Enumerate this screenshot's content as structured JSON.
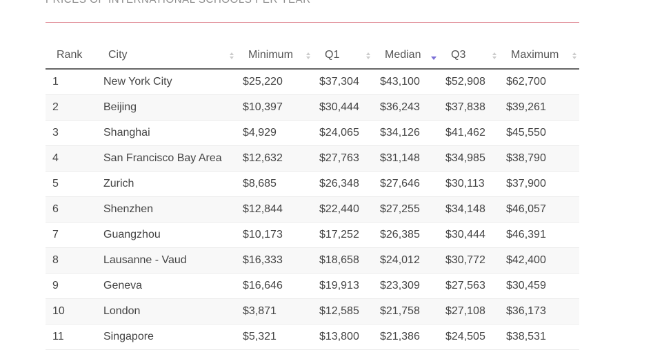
{
  "header": {
    "title": "PRICES OF INTERNATIONAL SCHOOLS PER YEAR"
  },
  "table": {
    "columns": [
      "Rank",
      "City",
      "Minimum",
      "Q1",
      "Median",
      "Q3",
      "Maximum"
    ],
    "sort": {
      "column": "Median",
      "direction": "descending"
    },
    "rows": [
      [
        "1",
        "New York City",
        "$25,220",
        "$37,304",
        "$43,100",
        "$52,908",
        "$62,700"
      ],
      [
        "2",
        "Beijing",
        "$10,397",
        "$30,444",
        "$36,243",
        "$37,838",
        "$39,261"
      ],
      [
        "3",
        "Shanghai",
        "$4,929",
        "$24,065",
        "$34,126",
        "$41,462",
        "$45,550"
      ],
      [
        "4",
        "San Francisco Bay Area",
        "$12,632",
        "$27,763",
        "$31,148",
        "$34,985",
        "$38,790"
      ],
      [
        "5",
        "Zurich",
        "$8,685",
        "$26,348",
        "$27,646",
        "$30,113",
        "$37,900"
      ],
      [
        "6",
        "Shenzhen",
        "$12,844",
        "$22,440",
        "$27,255",
        "$34,148",
        "$46,057"
      ],
      [
        "7",
        "Guangzhou",
        "$10,173",
        "$17,252",
        "$26,385",
        "$30,444",
        "$46,391"
      ],
      [
        "8",
        "Lausanne - Vaud",
        "$16,333",
        "$18,658",
        "$24,012",
        "$30,772",
        "$42,400"
      ],
      [
        "9",
        "Geneva",
        "$16,646",
        "$19,913",
        "$23,309",
        "$27,563",
        "$30,459"
      ],
      [
        "10",
        "London",
        "$3,871",
        "$12,585",
        "$21,758",
        "$27,108",
        "$36,173"
      ],
      [
        "11",
        "Singapore",
        "$5,321",
        "$13,800",
        "$21,386",
        "$24,505",
        "$38,531"
      ]
    ]
  }
}
